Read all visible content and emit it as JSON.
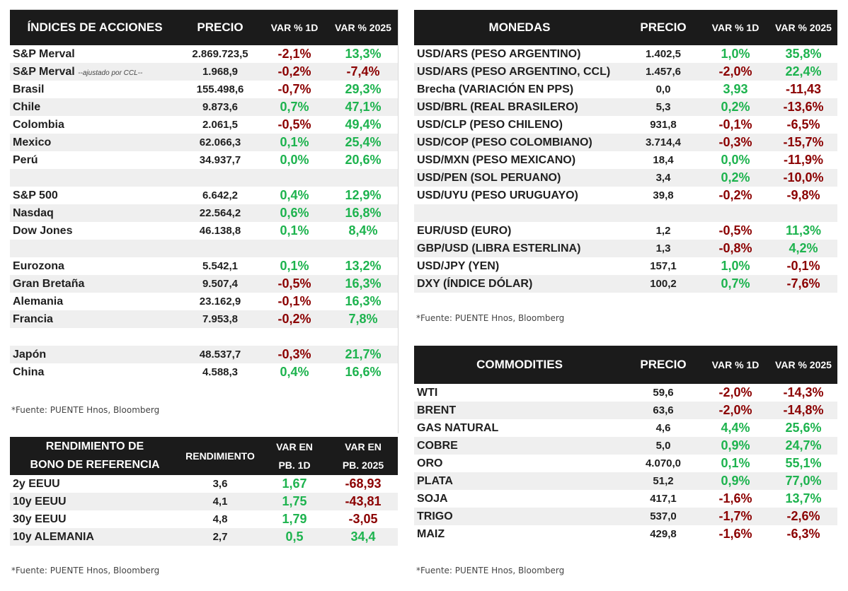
{
  "indices": {
    "headers": {
      "name": "ÍNDICES DE ACCIONES",
      "price": "PRECIO",
      "d1": "VAR % 1D",
      "ytd": "VAR % 2025"
    },
    "rows": [
      {
        "name": "S&P Merval",
        "price": "2.869.723,5",
        "d1": "-2,1%",
        "ytd": "13,3%"
      },
      {
        "name": "S&P Merval",
        "note": "--ajustado por CCL--",
        "price": "1.968,9",
        "d1": "-0,2%",
        "ytd": "-7,4%"
      },
      {
        "name": "Brasil",
        "price": "155.498,6",
        "d1": "-0,7%",
        "ytd": "29,3%"
      },
      {
        "name": "Chile",
        "price": "9.873,6",
        "d1": "0,7%",
        "ytd": "47,1%"
      },
      {
        "name": "Colombia",
        "price": "2.061,5",
        "d1": "-0,5%",
        "ytd": "49,4%"
      },
      {
        "name": "Mexico",
        "price": "62.066,3",
        "d1": "0,1%",
        "ytd": "25,4%"
      },
      {
        "name": "Perú",
        "price": "34.937,7",
        "d1": "0,0%",
        "ytd": "20,6%"
      },
      {
        "blank": true
      },
      {
        "name": "S&P 500",
        "price": "6.642,2",
        "d1": "0,4%",
        "ytd": "12,9%"
      },
      {
        "name": "Nasdaq",
        "price": "22.564,2",
        "d1": "0,6%",
        "ytd": "16,8%"
      },
      {
        "name": "Dow Jones",
        "price": "46.138,8",
        "d1": "0,1%",
        "ytd": "8,4%"
      },
      {
        "blank": true
      },
      {
        "name": "Eurozona",
        "price": "5.542,1",
        "d1": "0,1%",
        "ytd": "13,2%"
      },
      {
        "name": "Gran Bretaña",
        "price": "9.507,4",
        "d1": "-0,5%",
        "ytd": "16,3%"
      },
      {
        "name": "Alemania",
        "price": "23.162,9",
        "d1": "-0,1%",
        "ytd": "16,3%"
      },
      {
        "name": "Francia",
        "price": "7.953,8",
        "d1": "-0,2%",
        "ytd": "7,8%"
      },
      {
        "blank": true
      },
      {
        "name": "Japón",
        "price": "48.537,7",
        "d1": "-0,3%",
        "ytd": "21,7%"
      },
      {
        "name": "China",
        "price": "4.588,3",
        "d1": "0,4%",
        "ytd": "16,6%"
      }
    ],
    "source": "*Fuente: PUENTE Hnos, Bloomberg"
  },
  "currencies": {
    "headers": {
      "name": "MONEDAS",
      "price": "PRECIO",
      "d1": "VAR % 1D",
      "ytd": "VAR % 2025"
    },
    "rows": [
      {
        "name": "USD/ARS (PESO ARGENTINO)",
        "price": "1.402,5",
        "d1": "1,0%",
        "ytd": "35,8%"
      },
      {
        "name": "USD/ARS (PESO ARGENTINO, CCL)",
        "price": "1.457,6",
        "d1": "-2,0%",
        "ytd": "22,4%"
      },
      {
        "name": "Brecha (VARIACIÓN EN PPS)",
        "price": "0,0",
        "d1": "3,93",
        "ytd": "-11,43"
      },
      {
        "name": "USD/BRL (REAL BRASILERO)",
        "price": "5,3",
        "d1": "0,2%",
        "ytd": "-13,6%"
      },
      {
        "name": "USD/CLP (PESO CHILENO)",
        "price": "931,8",
        "d1": "-0,1%",
        "ytd": "-6,5%"
      },
      {
        "name": "USD/COP (PESO COLOMBIANO)",
        "price": "3.714,4",
        "d1": "-0,3%",
        "ytd": "-15,7%"
      },
      {
        "name": "USD/MXN (PESO MEXICANO)",
        "price": "18,4",
        "d1": "0,0%",
        "ytd": "-11,9%"
      },
      {
        "name": "USD/PEN (SOL PERUANO)",
        "price": "3,4",
        "d1": "0,2%",
        "ytd": "-10,0%"
      },
      {
        "name": "USD/UYU (PESO URUGUAYO)",
        "price": "39,8",
        "d1": "-0,2%",
        "ytd": "-9,8%"
      },
      {
        "blank": true
      },
      {
        "name": "EUR/USD (EURO)",
        "price": "1,2",
        "d1": "-0,5%",
        "ytd": "11,3%"
      },
      {
        "name": "GBP/USD (LIBRA ESTERLINA)",
        "price": "1,3",
        "d1": "-0,8%",
        "ytd": "4,2%"
      },
      {
        "name": "USD/JPY (YEN)",
        "price": "157,1",
        "d1": "1,0%",
        "ytd": "-0,1%"
      },
      {
        "name": "DXY (ÍNDICE DÓLAR)",
        "price": "100,2",
        "d1": "0,7%",
        "ytd": "-7,6%"
      }
    ],
    "source": "*Fuente: PUENTE Hnos, Bloomberg"
  },
  "bonds": {
    "headers": {
      "name1": "RENDIMIENTO DE",
      "name2": "BONO DE REFERENCIA",
      "yield": "RENDIMIENTO",
      "d1_1": "VAR EN",
      "d1_2": "PB. 1D",
      "ytd_1": "VAR EN",
      "ytd_2": "PB. 2025"
    },
    "rows": [
      {
        "name": "2y EEUU",
        "yield": "3,6",
        "d1": "1,67",
        "ytd": "-68,93"
      },
      {
        "name": "10y EEUU",
        "yield": "4,1",
        "d1": "1,75",
        "ytd": "-43,81"
      },
      {
        "name": "30y EEUU",
        "yield": "4,8",
        "d1": "1,79",
        "ytd": "-3,05"
      },
      {
        "name": "10y ALEMANIA",
        "yield": "2,7",
        "d1": "0,5",
        "ytd": "34,4"
      }
    ],
    "source": "*Fuente: PUENTE Hnos, Bloomberg"
  },
  "commodities": {
    "headers": {
      "name": "COMMODITIES",
      "price": "PRECIO",
      "d1": "VAR % 1D",
      "ytd": "VAR % 2025"
    },
    "rows": [
      {
        "name": "WTI",
        "price": "59,6",
        "d1": "-2,0%",
        "ytd": "-14,3%"
      },
      {
        "name": "BRENT",
        "price": "63,6",
        "d1": "-2,0%",
        "ytd": "-14,8%"
      },
      {
        "name": "GAS NATURAL",
        "price": "4,6",
        "d1": "4,4%",
        "ytd": "25,6%"
      },
      {
        "name": "COBRE",
        "price": "5,0",
        "d1": "0,9%",
        "ytd": "24,7%"
      },
      {
        "name": "ORO",
        "price": "4.070,0",
        "d1": "0,1%",
        "ytd": "55,1%"
      },
      {
        "name": "PLATA",
        "price": "51,2",
        "d1": "0,9%",
        "ytd": "77,0%"
      },
      {
        "name": "SOJA",
        "price": "417,1",
        "d1": "-1,6%",
        "ytd": "13,7%"
      },
      {
        "name": "TRIGO",
        "price": "537,0",
        "d1": "-1,7%",
        "ytd": "-2,6%"
      },
      {
        "name": "MAIZ",
        "price": "429,8",
        "d1": "-1,6%",
        "ytd": "-6,3%"
      }
    ],
    "source": "*Fuente: PUENTE Hnos, Bloomberg"
  }
}
